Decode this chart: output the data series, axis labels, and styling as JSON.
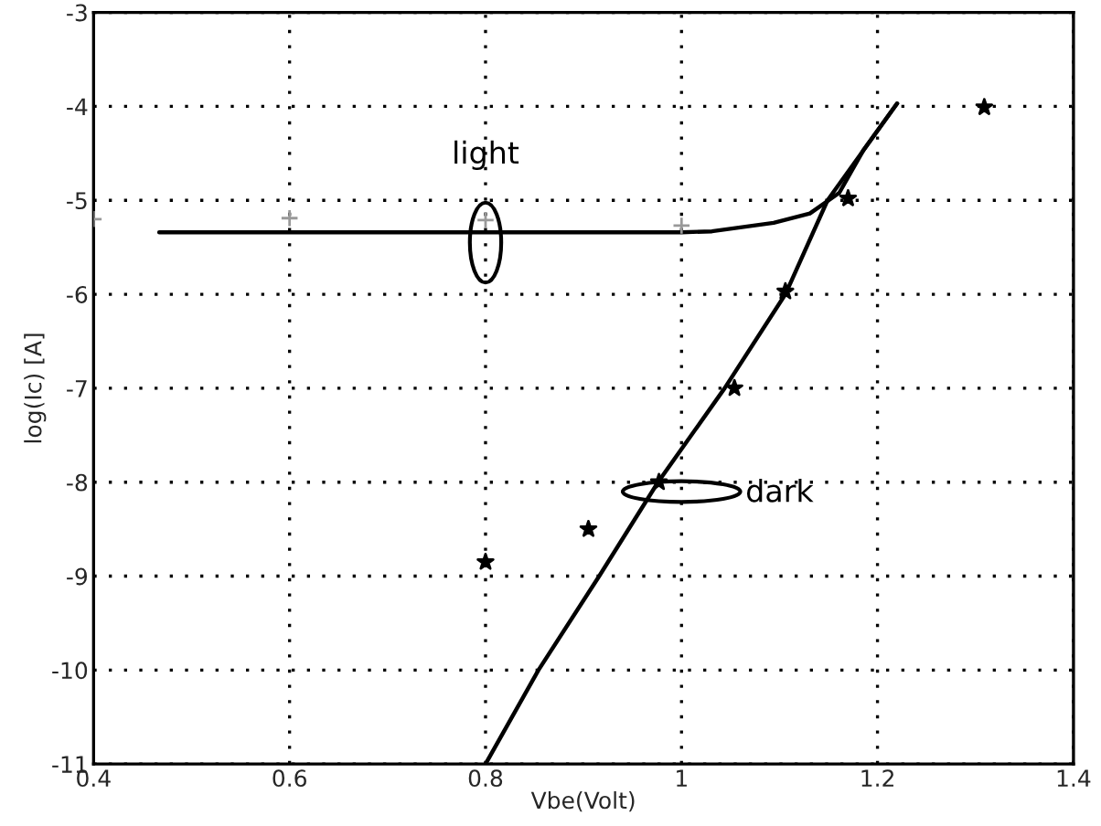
{
  "chart_data": {
    "type": "line",
    "xlabel": "Vbe(Volt)",
    "ylabel": "log(Ic) [A]",
    "xlim": [
      0.4,
      1.4
    ],
    "ylim": [
      -11,
      -3
    ],
    "xticks": [
      0.4,
      0.6,
      0.8,
      1,
      1.2,
      1.4
    ],
    "yticks": [
      -11,
      -10,
      -9,
      -8,
      -7,
      -6,
      -5,
      -4,
      -3
    ],
    "grid": true,
    "line_style": "solid",
    "series": [
      {
        "name": "light",
        "color": "#000000",
        "x": [
          0.467,
          0.6,
          0.8,
          1.0,
          1.031,
          1.094,
          1.131,
          1.161,
          1.186,
          1.22
        ],
        "values": [
          -5.34,
          -5.34,
          -5.34,
          -5.34,
          -5.33,
          -5.24,
          -5.14,
          -4.92,
          -4.46,
          -3.97
        ]
      },
      {
        "name": "dark",
        "color": "#000000",
        "x": [
          0.8,
          0.854,
          0.916,
          0.976,
          1.044,
          1.106,
          1.149,
          1.22
        ],
        "values": [
          -11,
          -10,
          -9,
          -8,
          -7,
          -6,
          -5,
          -3.97
        ]
      },
      {
        "type": "scatter",
        "marker": "cross",
        "color": "#999999",
        "x": [
          0.4,
          0.6,
          0.8,
          1.0
        ],
        "values": [
          -5.2,
          -5.19,
          -5.21,
          -5.27
        ]
      },
      {
        "type": "scatter",
        "marker": "star",
        "color": "#000000",
        "x": [
          0.8,
          0.905,
          0.977,
          1.054,
          1.106,
          1.17,
          1.309
        ],
        "values": [
          -8.85,
          -8.5,
          -8.0,
          -7.0,
          -5.97,
          -4.98,
          -4.01
        ]
      }
    ]
  }
}
